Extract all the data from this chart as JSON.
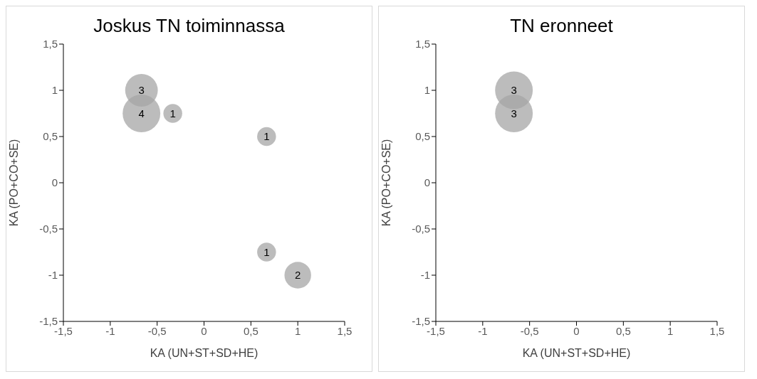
{
  "chart_data": [
    {
      "type": "bubble",
      "title": "Joskus TN toiminnassa",
      "xlabel": "KA (UN+ST+SD+HE)",
      "ylabel": "KA (PO+CO+SE)",
      "x": [
        -0.667,
        -0.667,
        -0.333,
        0.667,
        0.667,
        1
      ],
      "values": [
        1,
        0.75,
        0.75,
        0.5,
        -0.75,
        -1
      ],
      "sizes": [
        3,
        4,
        1,
        1,
        1,
        2
      ],
      "value_labels": [
        "3",
        "4",
        "1",
        "1",
        "1",
        "2"
      ],
      "color": "#a6a6a6",
      "xlim": [
        -1.5,
        1.5
      ],
      "ylim": [
        -1.5,
        1.5
      ],
      "xticks": [
        {
          "value": -1.5,
          "label": "-1,5"
        },
        -1,
        {
          "value": -0.5,
          "label": "-0,5"
        },
        0,
        {
          "value": 0.5,
          "label": "0,5"
        },
        1,
        {
          "value": 1.5,
          "label": "1,5"
        }
      ],
      "yticks": [
        {
          "value": -1.5,
          "label": "-1,5"
        },
        -1,
        {
          "value": -0.5,
          "label": "-0,5"
        },
        0,
        {
          "value": 0.5,
          "label": "0,5"
        },
        1,
        {
          "value": 1.5,
          "label": "1,5"
        }
      ],
      "grid": false
    },
    {
      "type": "bubble",
      "title": "TN eronneet",
      "xlabel": "KA (UN+ST+SD+HE)",
      "ylabel": "KA (PO+CO+SE)",
      "x": [
        -0.667,
        -0.667
      ],
      "values": [
        1,
        0.75
      ],
      "sizes": [
        3,
        3
      ],
      "value_labels": [
        "3",
        "3"
      ],
      "color": "#a6a6a6",
      "xlim": [
        -1.5,
        1.5
      ],
      "ylim": [
        -1.5,
        1.5
      ],
      "xticks": [
        {
          "value": -1.5,
          "label": "-1,5"
        },
        -1,
        {
          "value": -0.5,
          "label": "-0,5"
        },
        0,
        {
          "value": 0.5,
          "label": "0,5"
        },
        1,
        {
          "value": 1.5,
          "label": "1,5"
        }
      ],
      "yticks": [
        {
          "value": -1.5,
          "label": "-1,5"
        },
        -1,
        {
          "value": -0.5,
          "label": "-0,5"
        },
        0,
        {
          "value": 0.5,
          "label": "0,5"
        },
        1,
        {
          "value": 1.5,
          "label": "1,5"
        }
      ],
      "grid": false
    }
  ]
}
